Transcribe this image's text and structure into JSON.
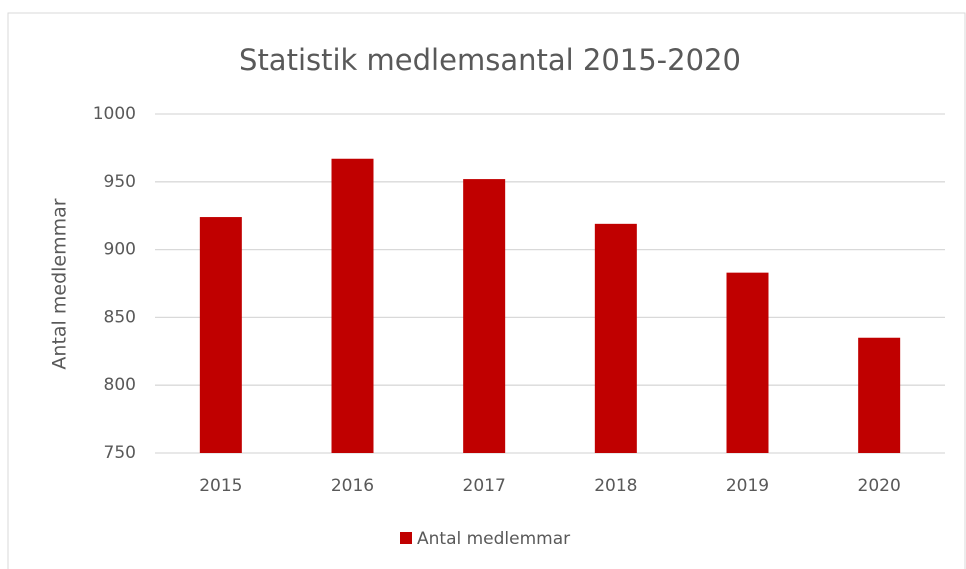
{
  "chart_data": {
    "type": "bar",
    "title": "Statistik medlemsantal  2015-2020",
    "y_label": "Antal medlemmar",
    "categories": [
      "2015",
      "2016",
      "2017",
      "2018",
      "2019",
      "2020"
    ],
    "series": [
      {
        "name": "Antal medlemmar",
        "color": "#c00000",
        "values": [
          924,
          967,
          952,
          919,
          883,
          835
        ]
      }
    ],
    "ylim": [
      750,
      1000
    ],
    "yticks": [
      750,
      800,
      850,
      900,
      950,
      1000
    ],
    "grid": true,
    "legend": "bottom"
  }
}
